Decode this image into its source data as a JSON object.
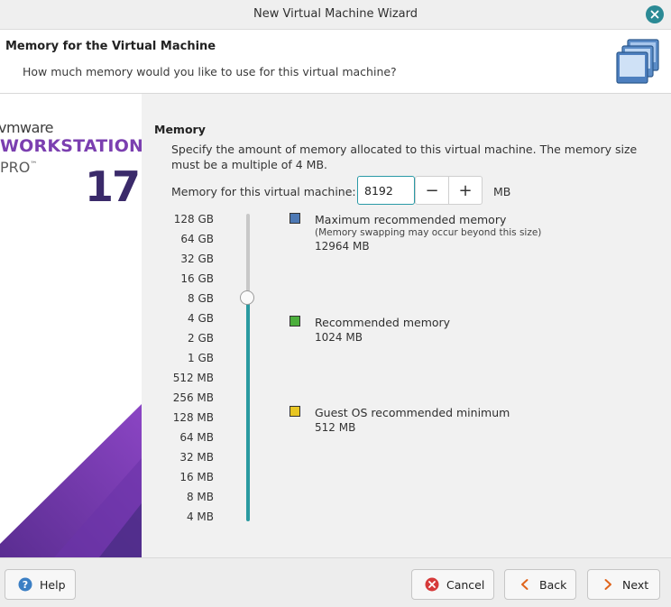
{
  "window": {
    "title": "New Virtual Machine Wizard"
  },
  "header": {
    "title": "Memory for the Virtual Machine",
    "subtitle": "How much memory would you like to use for this virtual machine?"
  },
  "banner": {
    "vendor": "vmware",
    "product": "WORKSTATION",
    "edition": "PRO",
    "trademark": "™",
    "version": "17"
  },
  "memory": {
    "section_title": "Memory",
    "description": "Specify the amount of memory allocated to this virtual machine. The memory size must be a multiple of 4 MB.",
    "field_label": "Memory for this virtual machine:",
    "value": "8192",
    "unit": "MB",
    "decrement_symbol": "−",
    "increment_symbol": "+",
    "scale_labels": [
      "128 GB",
      "64 GB",
      "32 GB",
      "16 GB",
      "8 GB",
      "4 GB",
      "2 GB",
      "1 GB",
      "512 MB",
      "256 MB",
      "128 MB",
      "64 MB",
      "32 MB",
      "16 MB",
      "8 MB",
      "4 MB"
    ],
    "slider_selected": "8 GB"
  },
  "legend": [
    {
      "label": "Maximum recommended memory",
      "note": "(Memory swapping may occur beyond this size)",
      "value": "12964 MB",
      "color": "#4d79b5"
    },
    {
      "label": "Recommended memory",
      "note": "",
      "value": "1024 MB",
      "color": "#4caf3c"
    },
    {
      "label": "Guest OS recommended minimum",
      "note": "",
      "value": "512 MB",
      "color": "#e8c623"
    }
  ],
  "footer": {
    "help_label": "Help",
    "cancel_label": "Cancel",
    "back_label": "Back",
    "next_label": "Next"
  },
  "colors": {
    "accent": "#2b9aa0",
    "brand_purple": "#7b3fb0",
    "cancel_red": "#d63a3a",
    "next_orange": "#e0641b",
    "help_blue": "#3b7fc4"
  }
}
